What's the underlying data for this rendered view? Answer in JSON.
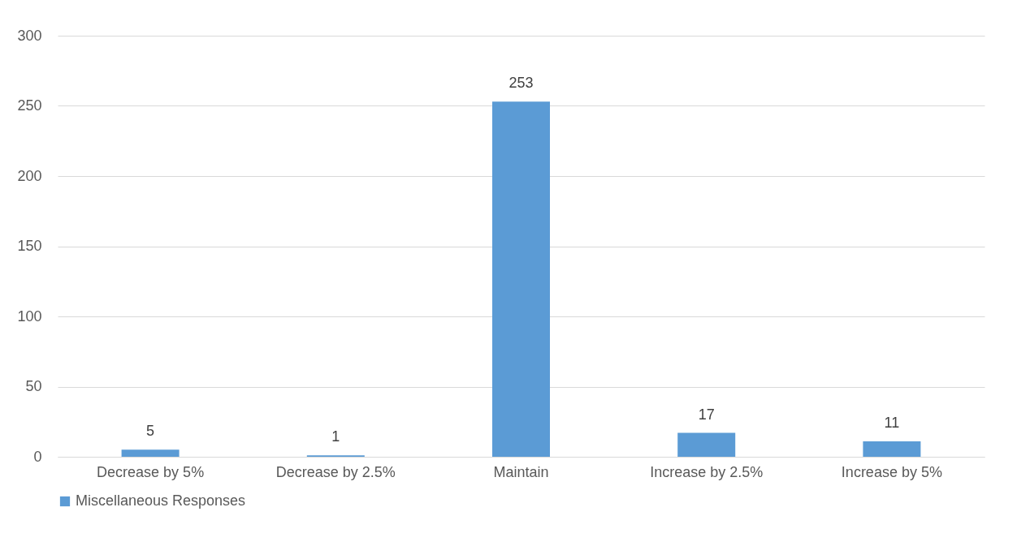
{
  "chart_data": {
    "type": "bar",
    "categories": [
      "Decrease by 5%",
      "Decrease by 2.5%",
      "Maintain",
      "Increase by 2.5%",
      "Increase by 5%"
    ],
    "series": [
      {
        "name": "Miscellaneous Responses",
        "color": "#5b9bd5",
        "values": [
          5,
          1,
          253,
          17,
          11
        ]
      }
    ],
    "ylim": [
      0,
      300
    ],
    "yticks": [
      0,
      50,
      100,
      150,
      200,
      250,
      300
    ],
    "grid": "y",
    "legend": "bottom",
    "data_labels": true
  }
}
